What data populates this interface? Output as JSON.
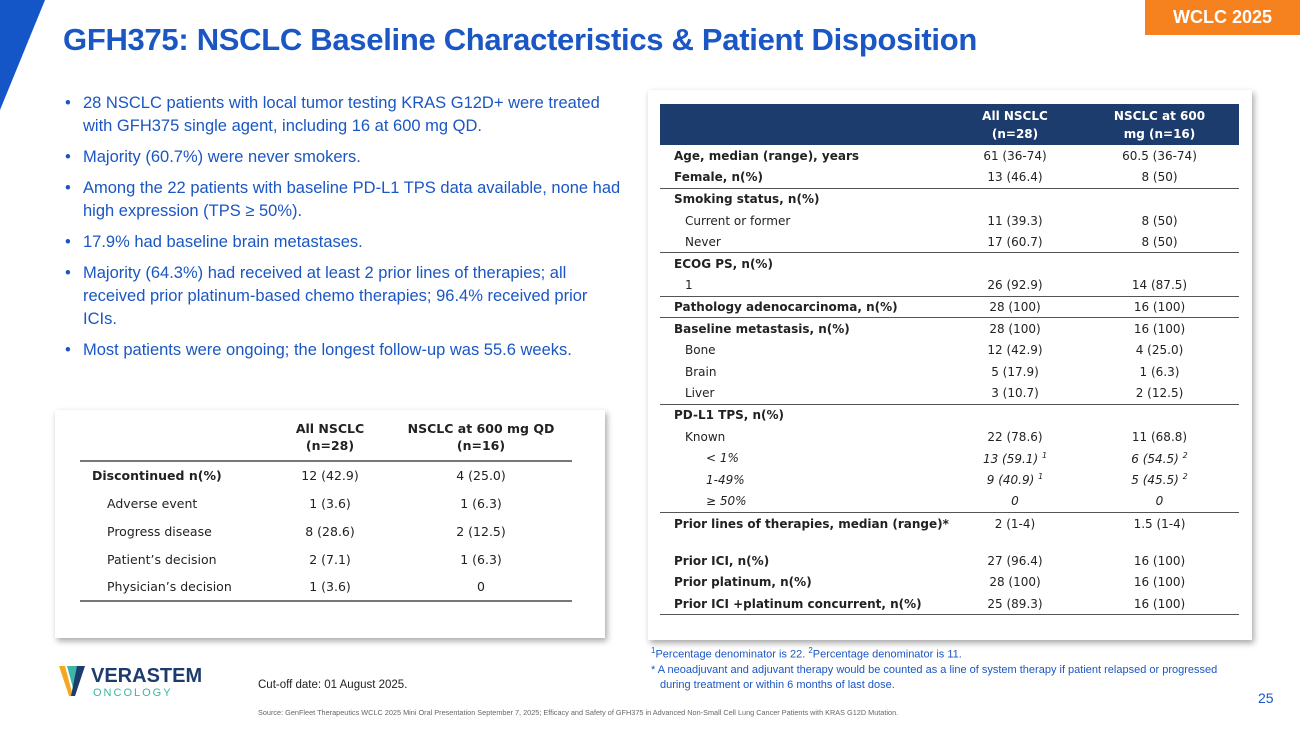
{
  "header": {
    "title": "GFH375: NSCLC Baseline Characteristics & Patient Disposition",
    "badge": "WCLC 2025"
  },
  "bullets": [
    "28 NSCLC patients with local tumor testing KRAS G12D+ were treated with GFH375 single agent, including 16 at 600 mg QD.",
    "Majority (60.7%) were never smokers.",
    "Among the 22 patients with baseline PD-L1 TPS data available, none had high expression (TPS ≥ 50%).",
    "17.9% had baseline brain metastases.",
    "Majority (64.3%) had received at least 2 prior lines of therapies; all received prior platinum-based chemo therapies; 96.4% received prior ICIs.",
    "Most patients were ongoing; the longest follow-up was 55.6 weeks."
  ],
  "disposition": {
    "headers": [
      "",
      "All NSCLC (n=28)",
      "NSCLC at 600 mg QD (n=16)"
    ],
    "rows": [
      {
        "label": "Discontinued n(%)",
        "a": "12 (42.9)",
        "b": "4 (25.0)",
        "bold": true
      },
      {
        "label": "Adverse event",
        "a": "1 (3.6)",
        "b": "1 (6.3)"
      },
      {
        "label": "Progress disease",
        "a": "8 (28.6)",
        "b": "2 (12.5)"
      },
      {
        "label": "Patient’s decision",
        "a": "2 (7.1)",
        "b": "1 (6.3)"
      },
      {
        "label": "Physician’s decision",
        "a": "1 (3.6)",
        "b": "0"
      }
    ]
  },
  "baseline": {
    "headers": [
      "",
      "All NSCLC (n=28)",
      "NSCLC at 600 mg (n=16)"
    ],
    "rows": [
      {
        "label": "Age, median (range), years",
        "a": "61 (36-74)",
        "b": "60.5 (36-74)",
        "cls": "bold"
      },
      {
        "label": "Female, n(%)",
        "a": "13 (46.4)",
        "b": "8 (50)",
        "cls": "bold"
      },
      {
        "label": "Smoking status, n(%)",
        "a": "",
        "b": "",
        "cls": "bold sep"
      },
      {
        "label": "Current or former",
        "a": "11 (39.3)",
        "b": "8 (50)",
        "cls": ""
      },
      {
        "label": "Never",
        "a": "17 (60.7)",
        "b": "8 (50)",
        "cls": ""
      },
      {
        "label": "ECOG PS, n(%)",
        "a": "",
        "b": "",
        "cls": "bold sep"
      },
      {
        "label": "1",
        "a": "26 (92.9)",
        "b": "14 (87.5)",
        "cls": ""
      },
      {
        "label": "Pathology adenocarcinoma, n(%)",
        "a": "28 (100)",
        "b": "16 (100)",
        "cls": "bold sep"
      },
      {
        "label": "Baseline metastasis, n(%)",
        "a": "28 (100)",
        "b": "16 (100)",
        "cls": "bold sep"
      },
      {
        "label": "Bone",
        "a": "12 (42.9)",
        "b": "4 (25.0)",
        "cls": ""
      },
      {
        "label": "Brain",
        "a": "5 (17.9)",
        "b": "1 (6.3)",
        "cls": ""
      },
      {
        "label": "Liver",
        "a": "3 (10.7)",
        "b": "2 (12.5)",
        "cls": ""
      },
      {
        "label": "PD-L1 TPS, n(%)",
        "a": "",
        "b": "",
        "cls": "bold sep"
      },
      {
        "label": "Known",
        "a": "22 (78.6)",
        "b": "11 (68.8)",
        "cls": ""
      },
      {
        "label": "< 1%",
        "a": "13 (59.1)",
        "asup": "1",
        "b": "6 (54.5)",
        "bsup": "2",
        "cls": "ital"
      },
      {
        "label": "1-49%",
        "a": "9 (40.9)",
        "asup": "1",
        "b": "5 (45.5)",
        "bsup": "2",
        "cls": "ital"
      },
      {
        "label": "≥ 50%",
        "a": "0",
        "b": "0",
        "cls": "ital"
      },
      {
        "label": "Prior lines of therapies, median (range)*",
        "a": "2 (1-4)",
        "b": "1.5 (1-4)",
        "cls": "bold sep two"
      },
      {
        "label": "Prior ICI, n(%)",
        "a": "27 (96.4)",
        "b": "16 (100)",
        "cls": "bold"
      },
      {
        "label": "Prior platinum, n(%)",
        "a": "28 (100)",
        "b": "16 (100)",
        "cls": "bold"
      },
      {
        "label": "Prior ICI +platinum concurrent, n(%)",
        "a": "25 (89.3)",
        "b": "16 (100)",
        "cls": "bold end"
      }
    ]
  },
  "footnotes": {
    "f1": "Percentage denominator is 22.",
    "f2": "Percentage denominator is 11.",
    "star": "* A neoadjuvant and adjuvant therapy would be counted as a line of system therapy if patient relapsed or progressed",
    "star2": "during treatment or within 6 months of last dose."
  },
  "footer": {
    "logo": "VERASTEM ONCOLOGY",
    "cutoff": "Cut-off date: 01 August 2025.",
    "page": "25",
    "source": "Source: GenFleet Therapeutics WCLC 2025 Mini Oral Presentation September 7, 2025; Efficacy and Safety of GFH375 in Advanced Non-Small Cell Lung Cancer Patients with KRAS G12D Mutation."
  }
}
